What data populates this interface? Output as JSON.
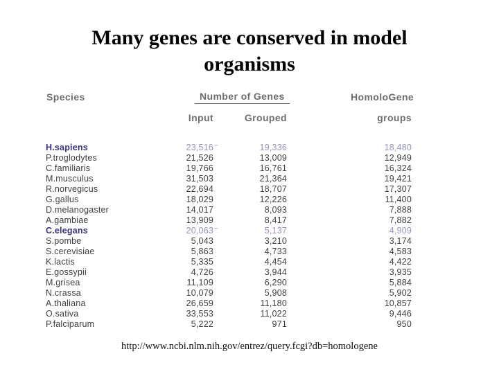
{
  "title": {
    "line1": "Many genes are conserved in model",
    "line2": "organisms"
  },
  "table": {
    "headers": {
      "species": "Species",
      "number_of_genes": "Number of Genes",
      "input": "Input",
      "grouped": "Grouped",
      "homologene": "HomoloGene",
      "groups": "groups"
    },
    "rows": [
      {
        "species": "H.sapiens",
        "input": "23,516",
        "input_note": "~",
        "grouped": "19,336",
        "groups": "18,480",
        "highlight": true
      },
      {
        "species": "P.troglodytes",
        "input": "21,526",
        "grouped": "13,009",
        "groups": "12,949",
        "highlight": false
      },
      {
        "species": "C.familiaris",
        "input": "19,766",
        "grouped": "16,761",
        "groups": "16,324",
        "highlight": false
      },
      {
        "species": "M.musculus",
        "input": "31,503",
        "grouped": "21,364",
        "groups": "19,421",
        "highlight": false
      },
      {
        "species": "R.norvegicus",
        "input": "22,694",
        "grouped": "18,707",
        "groups": "17,307",
        "highlight": false
      },
      {
        "species": "G.gallus",
        "input": "18,029",
        "grouped": "12,226",
        "groups": "11,400",
        "highlight": false
      },
      {
        "species": "D.melanogaster",
        "input": "14,017",
        "grouped": "8,093",
        "groups": "7,888",
        "highlight": false
      },
      {
        "species": "A.gambiae",
        "input": "13,909",
        "grouped": "8,417",
        "groups": "7,882",
        "highlight": false
      },
      {
        "species": "C.elegans",
        "input": "20,063",
        "input_note": "~",
        "grouped": "5,137",
        "groups": "4,909",
        "highlight": true
      },
      {
        "species": "S.pombe",
        "input": "5,043",
        "grouped": "3,210",
        "groups": "3,174",
        "highlight": false
      },
      {
        "species": "S.cerevisiae",
        "input": "5,863",
        "grouped": "4,733",
        "groups": "4,583",
        "highlight": false
      },
      {
        "species": "K.lactis",
        "input": "5,335",
        "grouped": "4,454",
        "groups": "4,422",
        "highlight": false
      },
      {
        "species": "E.gossypii",
        "input": "4,726",
        "grouped": "3,944",
        "groups": "3,935",
        "highlight": false
      },
      {
        "species": "M.grisea",
        "input": "11,109",
        "grouped": "6,290",
        "groups": "5,884",
        "highlight": false
      },
      {
        "species": "N.crassa",
        "input": "10,079",
        "grouped": "5,908",
        "groups": "5,902",
        "highlight": false
      },
      {
        "species": "A.thaliana",
        "input": "26,659",
        "grouped": "11,180",
        "groups": "10,857",
        "highlight": false
      },
      {
        "species": "O.sativa",
        "input": "33,553",
        "grouped": "11,022",
        "groups": "9,446",
        "highlight": false
      },
      {
        "species": "P.falciparum",
        "input": "5,222",
        "grouped": "971",
        "groups": "950",
        "highlight": false
      }
    ]
  },
  "footer": {
    "url": "http://www.ncbi.nlm.nih.gov/entrez/query.fcgi?db=homologene"
  },
  "colors": {
    "background": "#ffffff",
    "title_text": "#000000",
    "header_gray": "#6e6e6e",
    "body_text": "#3f3f3f",
    "highlight_species_navy": "#333380",
    "highlight_number_purple": "#9494c0"
  }
}
